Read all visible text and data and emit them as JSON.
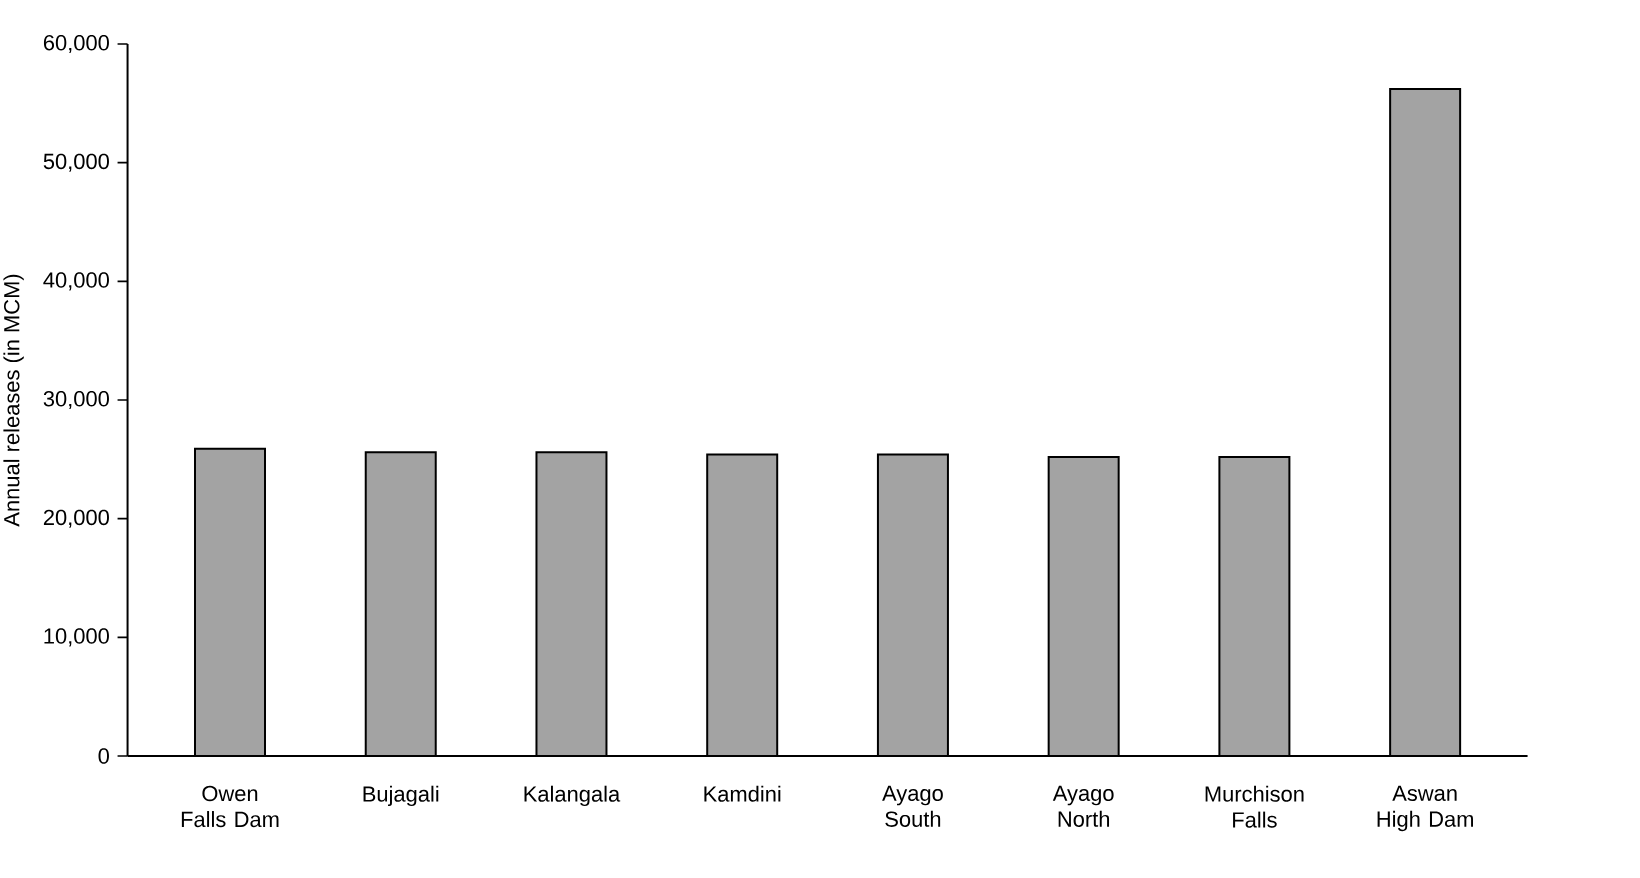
{
  "chart_data": {
    "type": "bar",
    "ylabel": "Annual releases (in MCM)",
    "categories": [
      "Owen Falls Dam",
      "Bujagali",
      "Kalangala",
      "Kamdini",
      "Ayago South",
      "Ayago North",
      "Murchison Falls",
      "Aswan High Dam"
    ],
    "values": [
      25900,
      25600,
      25600,
      25400,
      25400,
      25200,
      25200,
      56200
    ],
    "color": "#a3a3a3",
    "ylim": [
      0,
      60000
    ],
    "yticks": [
      {
        "value": 0,
        "label": "0"
      },
      {
        "value": 10000,
        "label": "10,000"
      },
      {
        "value": 20000,
        "label": "20,000"
      },
      {
        "value": 30000,
        "label": "30,000"
      },
      {
        "value": 40000,
        "label": "40,000"
      },
      {
        "value": 50000,
        "label": "50,000"
      },
      {
        "value": 60000,
        "label": "60,000"
      }
    ],
    "grid": false
  }
}
